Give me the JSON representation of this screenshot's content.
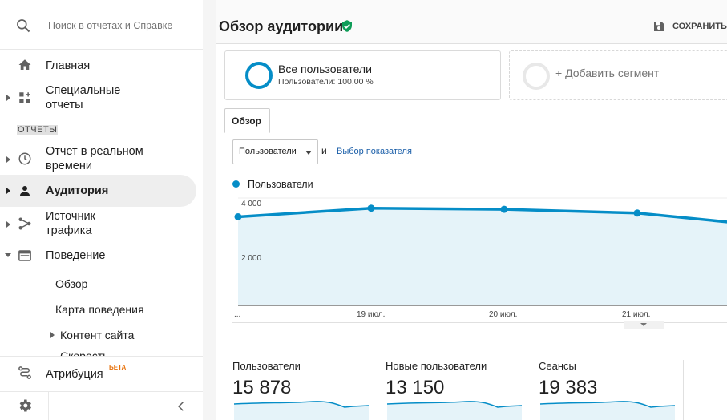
{
  "search": {
    "placeholder": "Поиск в отчетах и Справке",
    "icon": "search-icon"
  },
  "sidebar": {
    "items": [
      {
        "label": "Главная",
        "icon": "home-icon"
      },
      {
        "label": "Специальные\nотчеты",
        "icon": "dashboard-icon"
      },
      {
        "label": "Отчет в реальном\nвремени",
        "icon": "clock-icon"
      },
      {
        "label": "Аудитория",
        "icon": "person-icon"
      },
      {
        "label": "Источник\nтрафика",
        "icon": "acquisition-icon"
      },
      {
        "label": "Поведение",
        "icon": "behavior-icon"
      }
    ],
    "section_label": "ОТЧЕТЫ",
    "behavior_children": [
      "Обзор",
      "Карта поведения",
      "Контент сайта",
      "Скорость"
    ],
    "attribution": {
      "label": "Атрибуция",
      "badge": "БЕТА"
    }
  },
  "header": {
    "title": "Обзор аудитории",
    "save_label": "СОХРАНИТЬ"
  },
  "segments": {
    "active": {
      "title": "Все пользователи",
      "subtitle": "Пользователи: 100,00 %"
    },
    "add_label": "+ Добавить сегмент"
  },
  "tabs": [
    "Обзор"
  ],
  "metric_selector": {
    "selected": "Пользователи",
    "conjunction": "и",
    "link": "Выбор показателя"
  },
  "colors": {
    "accent": "#058dc7",
    "fill": "#e5f3f9",
    "verified": "#0f9d58"
  },
  "chart_data": {
    "type": "line",
    "legend": "Пользователи",
    "y_ticks": [
      "4 000",
      "2 000"
    ],
    "x_labels": [
      "...",
      "19 июл.",
      "20 июл.",
      "21 июл."
    ],
    "series": [
      {
        "name": "Пользователи",
        "values": [
          3300,
          3620,
          3580,
          3440,
          3100
        ]
      }
    ],
    "ylim": [
      0,
      4000
    ],
    "grid": true
  },
  "metrics": [
    {
      "label": "Пользователи",
      "value": "15 878"
    },
    {
      "label": "Новые пользователи",
      "value": "13 150"
    },
    {
      "label": "Сеансы",
      "value": "19 383"
    }
  ]
}
